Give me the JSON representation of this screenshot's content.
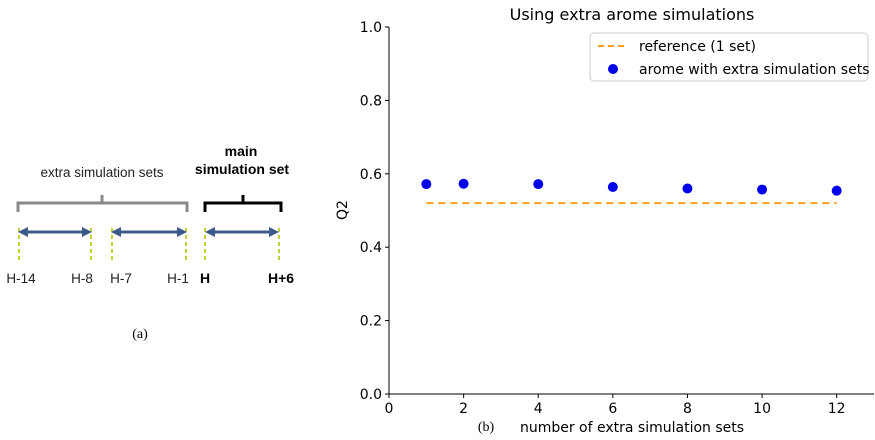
{
  "diagram": {
    "extra_label": "extra simulation sets",
    "main_label_line1": "main",
    "main_label_line2": "simulation set",
    "ticks": [
      "H-14",
      "H-8",
      "H-7",
      "H-1",
      "H",
      "H+6"
    ],
    "caption": "(a)",
    "colors": {
      "brace_extra": "#888888",
      "brace_main": "#000000",
      "arrow": "#3d5a8a",
      "dash": "#bcd13a"
    }
  },
  "chart_data": {
    "type": "scatter",
    "title": "Using extra arome simulations",
    "xlabel": "number of extra simulation sets",
    "ylabel": "Q2",
    "caption": "(b)",
    "xlim": [
      0,
      13
    ],
    "ylim": [
      0.0,
      1.0
    ],
    "xticks": [
      0,
      2,
      4,
      6,
      8,
      10,
      12
    ],
    "yticks": [
      "0.0",
      "0.2",
      "0.4",
      "0.6",
      "0.8",
      "1.0"
    ],
    "legend_position": "top-right",
    "grid": false,
    "series": [
      {
        "name": "reference (1 set)",
        "kind": "dashed-line",
        "color": "#ff9f1c",
        "x": [
          1,
          12
        ],
        "y": [
          0.52,
          0.52
        ]
      },
      {
        "name": "arome with extra simulation sets",
        "kind": "points",
        "color": "#0000ee",
        "x": [
          1,
          2,
          4,
          6,
          8,
          10,
          12
        ],
        "y": [
          0.572,
          0.573,
          0.572,
          0.564,
          0.56,
          0.557,
          0.554
        ]
      }
    ]
  }
}
